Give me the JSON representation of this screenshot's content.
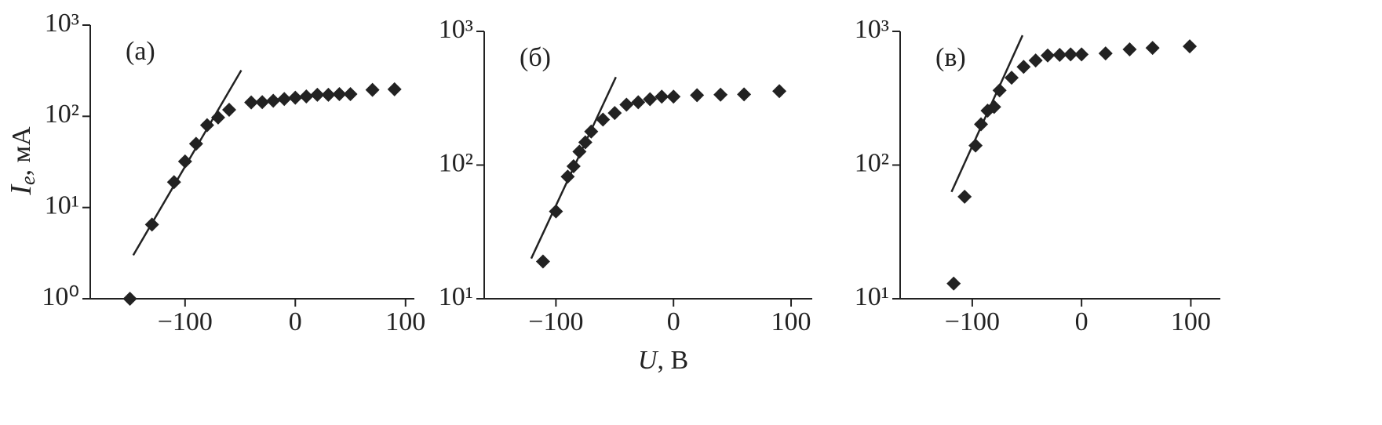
{
  "chart_data": [
    {
      "type": "scatter",
      "panel_label": "(а)",
      "ylabel_symbol": "I",
      "ylabel_subscript": "e",
      "ylabel_rest": ", мА",
      "log_y": true,
      "color": "#222222",
      "x": [
        -150,
        -130,
        -110,
        -100,
        -90,
        -80,
        -70,
        -60,
        -40,
        -30,
        -20,
        -10,
        0,
        10,
        20,
        30,
        40,
        50,
        70,
        90
      ],
      "values": [
        1.0,
        6.5,
        19,
        32,
        50,
        80,
        97,
        118,
        142,
        143,
        148,
        155,
        160,
        165,
        172,
        172,
        175,
        175,
        195,
        198
      ],
      "fit": {
        "x": [
          -147,
          -49
        ],
        "y": [
          3,
          320
        ]
      },
      "xlim": [
        -186,
        108
      ],
      "xticks": [
        {
          "value": -100,
          "label": "−100"
        },
        0,
        100
      ],
      "ylim": [
        1,
        1000
      ],
      "yticks": [
        {
          "value": 1,
          "label": "10⁰"
        },
        {
          "value": 10,
          "label": "10¹"
        },
        {
          "value": 100,
          "label": "10²"
        },
        {
          "value": 1000,
          "label": "10³"
        }
      ]
    },
    {
      "type": "scatter",
      "panel_label": "(б)",
      "xlabel_symbol": "U",
      "xlabel_rest": ", В",
      "log_y": true,
      "color": "#222222",
      "x": [
        -111,
        -100,
        -90,
        -85,
        -80,
        -75,
        -70,
        -60,
        -50,
        -40,
        -30,
        -20,
        -10,
        0,
        20,
        40,
        60,
        90
      ],
      "values": [
        19,
        45,
        82,
        98,
        126,
        148,
        178,
        219,
        245,
        283,
        295,
        311,
        325,
        325,
        333,
        336,
        338,
        357
      ],
      "fit": {
        "x": [
          -121,
          -49
        ],
        "y": [
          20,
          455
        ]
      },
      "xlim": [
        -161,
        118
      ],
      "xticks": [
        {
          "value": -100,
          "label": "−100"
        },
        0,
        100
      ],
      "ylim": [
        10,
        1000
      ],
      "yticks": [
        {
          "value": 10,
          "label": "10¹"
        },
        {
          "value": 100,
          "label": "10²"
        },
        {
          "value": 1000,
          "label": "10³"
        }
      ]
    },
    {
      "type": "scatter",
      "panel_label": "(в)",
      "log_y": true,
      "color": "#222222",
      "x": [
        -117,
        -107,
        -97,
        -92,
        -86,
        -80,
        -75,
        -64,
        -53,
        -42,
        -31,
        -20,
        -10,
        0,
        22,
        44,
        65,
        99
      ],
      "values": [
        13,
        58,
        140,
        202,
        255,
        272,
        362,
        450,
        543,
        606,
        660,
        667,
        672,
        672,
        684,
        733,
        752,
        773
      ],
      "fit": {
        "x": [
          -119,
          -54
        ],
        "y": [
          63,
          934
        ]
      },
      "xlim": [
        -166,
        127
      ],
      "xticks": [
        {
          "value": -100,
          "label": "−100"
        },
        0,
        100
      ],
      "ylim": [
        10,
        1000
      ],
      "yticks": [
        {
          "value": 10,
          "label": "10¹"
        },
        {
          "value": 100,
          "label": "10²"
        },
        {
          "value": 1000,
          "label": "10³"
        }
      ]
    }
  ]
}
